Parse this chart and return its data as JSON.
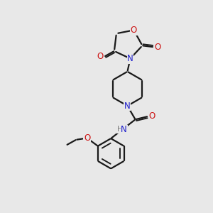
{
  "bg_color": "#e8e8e8",
  "bond_color": "#1a1a1a",
  "bond_width": 1.6,
  "atom_colors": {
    "N": "#2020cc",
    "O": "#cc1111",
    "H": "#777777",
    "C": "#1a1a1a"
  },
  "font_size_atom": 8.5,
  "font_size_small": 7.5
}
